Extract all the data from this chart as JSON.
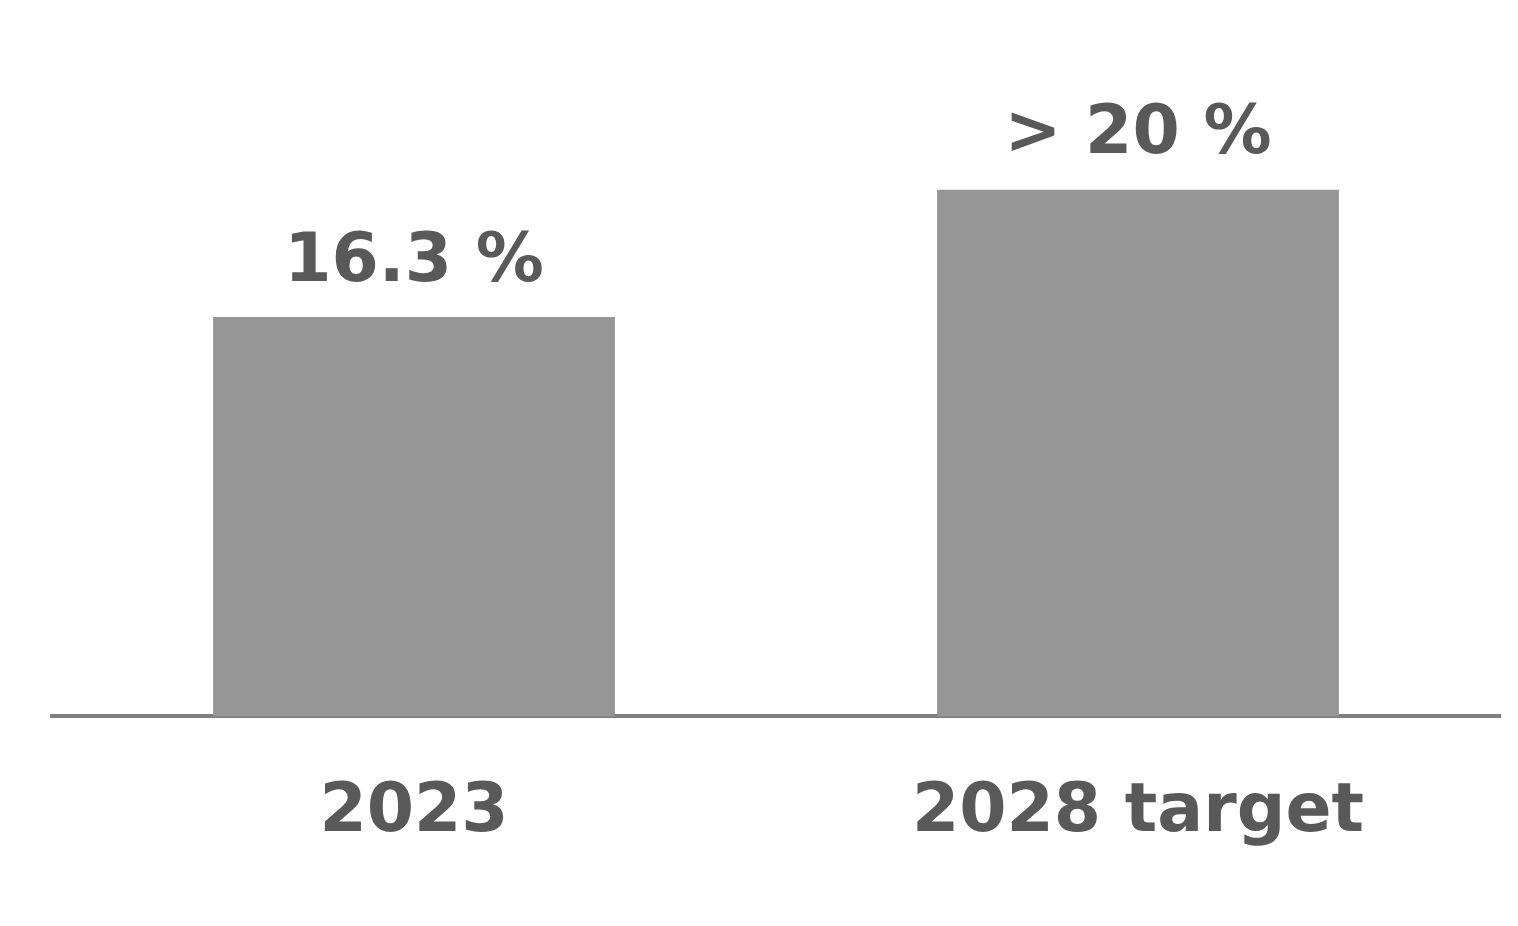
{
  "chart_data": {
    "type": "bar",
    "categories": [
      "2023",
      "2028 target"
    ],
    "values": [
      16.3,
      21.5
    ],
    "value_labels": [
      "16.3 %",
      "> 20 %"
    ],
    "color": "#969696",
    "tick_labels": "x",
    "grid": false,
    "legend": false
  }
}
